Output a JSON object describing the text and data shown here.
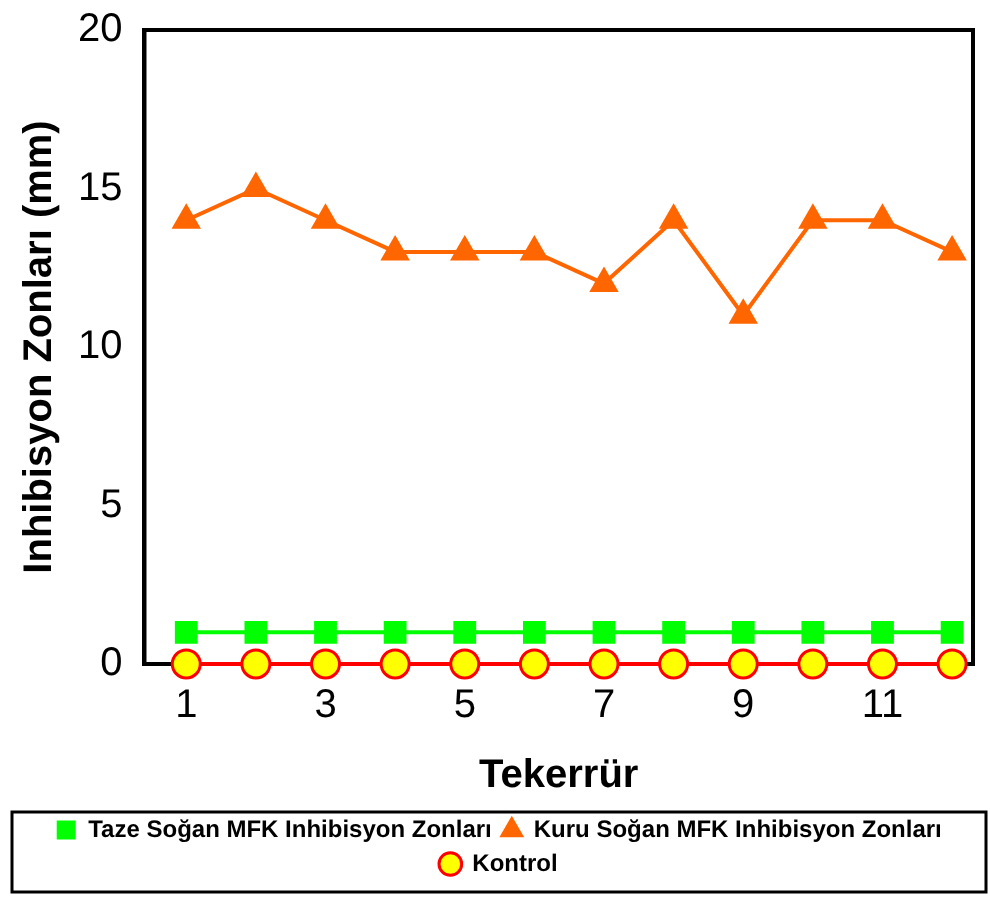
{
  "chart_data": {
    "type": "line",
    "xlabel": "Tekerrür",
    "ylabel": "Inhibisyon Zonları (mm)",
    "x": [
      1,
      2,
      3,
      4,
      5,
      6,
      7,
      8,
      9,
      10,
      11,
      12
    ],
    "xlim": [
      0.4,
      12.3
    ],
    "xticks": [
      1,
      3,
      5,
      7,
      9,
      11
    ],
    "ylim": [
      0,
      20
    ],
    "yticks": [
      0,
      5,
      10,
      15,
      20
    ],
    "grid": false,
    "legend": "bottom",
    "series": [
      {
        "name": "Taze Soğan MFK Inhibisyon Zonları",
        "color": "#00ff00",
        "marker": "square",
        "values": [
          1,
          1,
          1,
          1,
          1,
          1,
          1,
          1,
          1,
          1,
          1,
          1
        ]
      },
      {
        "name": "Kuru Soğan MFK Inhibisyon Zonları",
        "color": "#ff6600",
        "marker": "triangle",
        "values": [
          14,
          15,
          14,
          13,
          13,
          13,
          12,
          14,
          11,
          14,
          14,
          13
        ]
      },
      {
        "name": "Kontrol",
        "color": "#ff0000",
        "colors": [
          "#ffff00",
          "#ffff00",
          "#ffff00",
          "#ffff00",
          "#ffff00",
          "#ffff00",
          "#ffff00",
          "#ffff00",
          "#ffff00",
          "#ffff00",
          "#ffff00",
          "#ffff00"
        ],
        "marker": "circle",
        "values": [
          0,
          0,
          0,
          0,
          0,
          0,
          0,
          0,
          0,
          0,
          0,
          0
        ]
      }
    ]
  }
}
